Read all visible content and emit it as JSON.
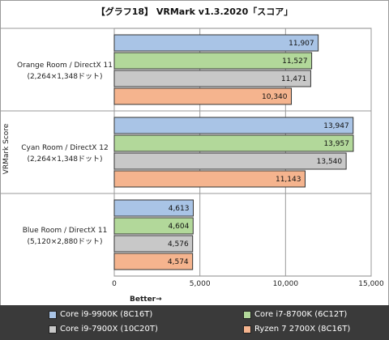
{
  "chart_data": {
    "type": "bar",
    "orientation": "horizontal",
    "title": "【グラフ18】 VRMark v1.3.2020「スコア」",
    "ylabel": "VRMark Score",
    "xlabel": "Better→",
    "xlim": [
      0,
      15000
    ],
    "xticks": [
      "0",
      "5,000",
      "10,000",
      "15,000"
    ],
    "tick_values": [
      0,
      5000,
      10000,
      15000
    ],
    "grid": true,
    "legend_position": "bottom",
    "categories": [
      {
        "line1": "Orange Room / DirectX 11",
        "line2": "(2,264×1,348ドット)"
      },
      {
        "line1": "Cyan Room / DirectX 12",
        "line2": "(2,264×1,348ドット)"
      },
      {
        "line1": "Blue Room / DirectX 11",
        "line2": "(5,120×2,880ドット)"
      }
    ],
    "series": [
      {
        "name": "Core i9-9900K (8C16T)",
        "color": "#a9c4e6",
        "values": [
          11907,
          13947,
          4613
        ],
        "labels": [
          "11,907",
          "13,947",
          "4,613"
        ]
      },
      {
        "name": "Core i7-8700K (6C12T)",
        "color": "#b2d89a",
        "values": [
          11527,
          13957,
          4604
        ],
        "labels": [
          "11,527",
          "13,957",
          "4,604"
        ]
      },
      {
        "name": "Core i9-7900X (10C20T)",
        "color": "#c8c8c8",
        "values": [
          11471,
          13540,
          4576
        ],
        "labels": [
          "11,471",
          "13,540",
          "4,576"
        ]
      },
      {
        "name": "Ryzen 7 2700X (8C16T)",
        "color": "#f5b48e",
        "values": [
          10340,
          11143,
          4574
        ],
        "labels": [
          "10,340",
          "11,143",
          "4,574"
        ]
      }
    ]
  }
}
